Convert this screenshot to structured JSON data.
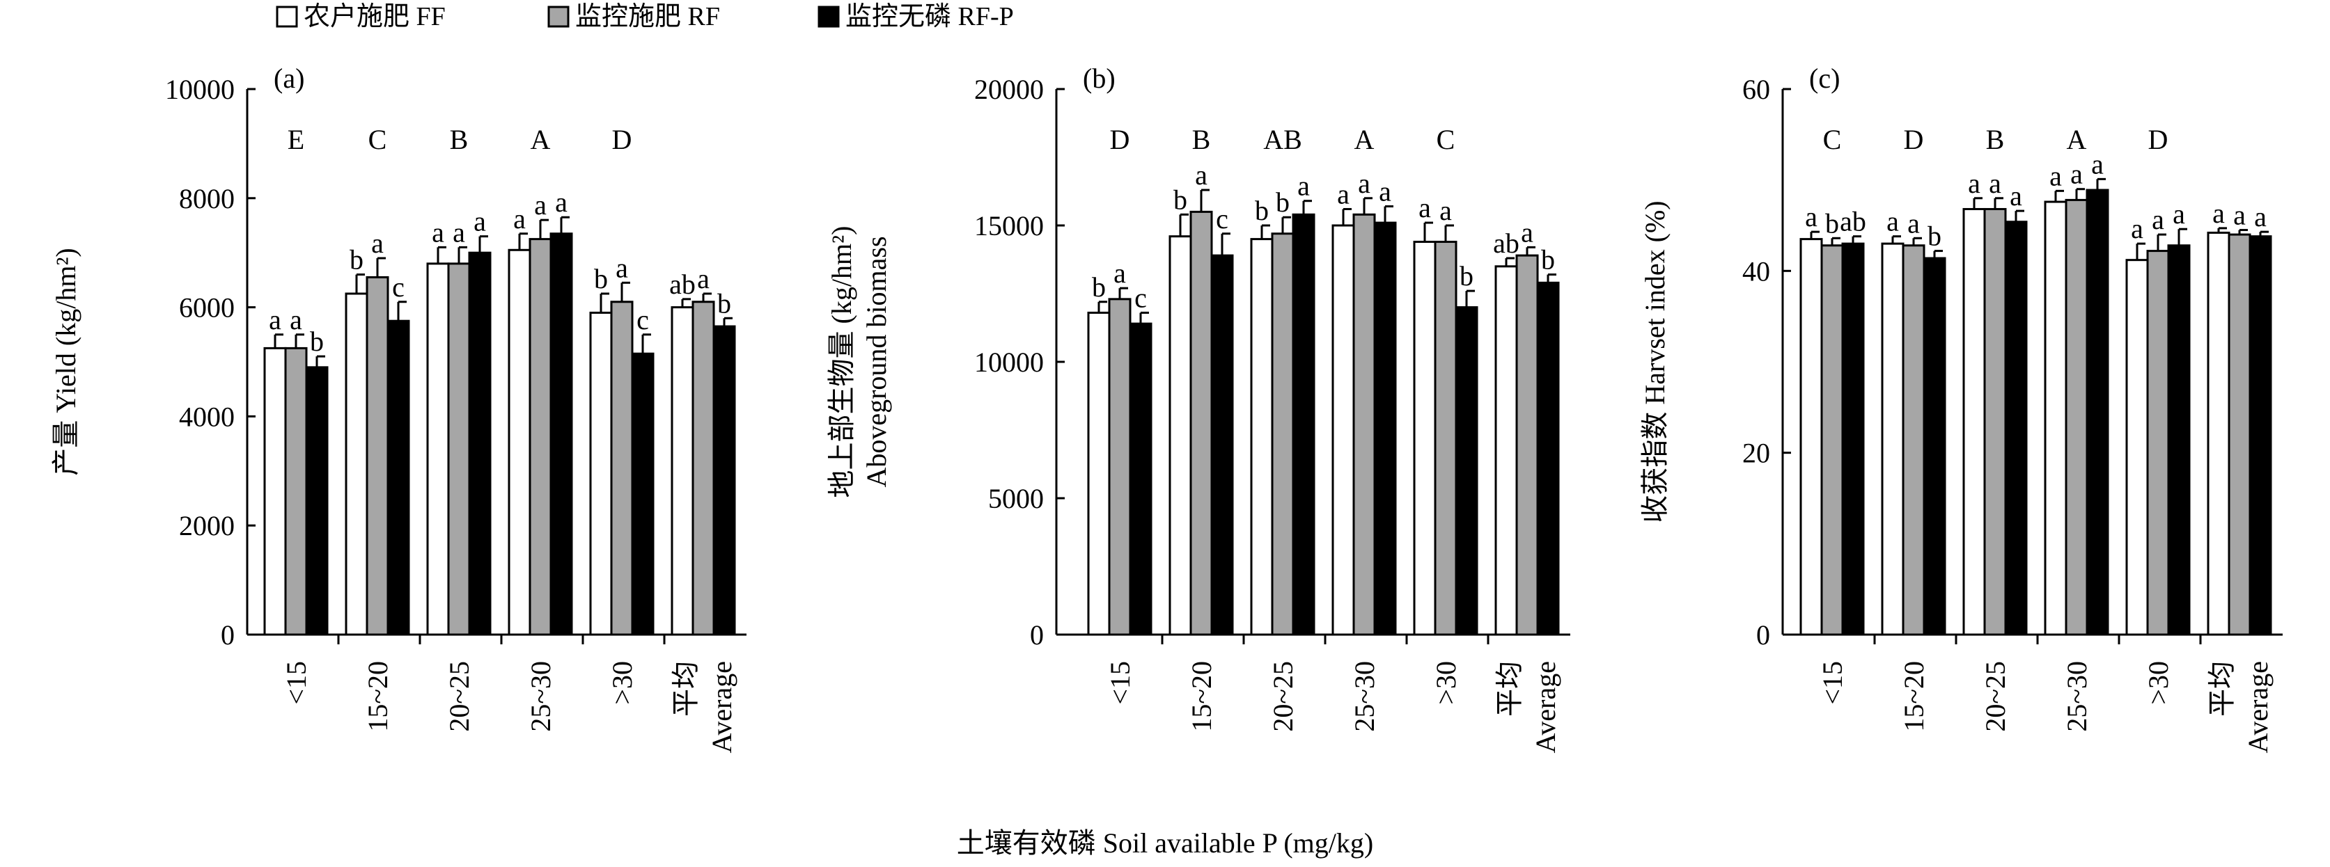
{
  "figure": {
    "legend": [
      {
        "label": "农户施肥 FF",
        "color": "#ffffff"
      },
      {
        "label": "监控施肥 RF",
        "color": "#a6a6a6"
      },
      {
        "label": "监控无磷 RF-P",
        "color": "#000000"
      }
    ],
    "shared_xlabel": "土壤有效磷 Soil available P (mg/kg)"
  },
  "chart_data": [
    {
      "type": "bar",
      "panel": "(a)",
      "ylabel": "产量 Yield (kg/hm²)",
      "ylim": [
        0,
        10000
      ],
      "yticks": [
        "0",
        "2000",
        "4000",
        "6000",
        "8000",
        "10000"
      ],
      "categories": [
        "<15",
        "15~20",
        "20~25",
        "25~30",
        ">30",
        "平均 Average"
      ],
      "group_letters": [
        "E",
        "C",
        "B",
        "A",
        "D",
        ""
      ],
      "series": [
        {
          "name": "农户施肥 FF",
          "color": "#ffffff",
          "values": [
            5250,
            6250,
            6800,
            7050,
            5900,
            6000
          ],
          "errors": [
            250,
            350,
            300,
            300,
            350,
            150
          ],
          "labels": [
            "a",
            "b",
            "a",
            "a",
            "b",
            "ab"
          ]
        },
        {
          "name": "监控施肥 RF",
          "color": "#a6a6a6",
          "values": [
            5250,
            6550,
            6800,
            7250,
            6100,
            6100
          ],
          "errors": [
            250,
            350,
            300,
            350,
            350,
            150
          ],
          "labels": [
            "a",
            "a",
            "a",
            "a",
            "a",
            "a"
          ]
        },
        {
          "name": "监控无磷 RF-P",
          "color": "#000000",
          "values": [
            4900,
            5750,
            7000,
            7350,
            5150,
            5650
          ],
          "errors": [
            200,
            350,
            300,
            300,
            350,
            150
          ],
          "labels": [
            "b",
            "c",
            "a",
            "a",
            "c",
            "b"
          ]
        }
      ]
    },
    {
      "type": "bar",
      "panel": "(b)",
      "ylabel": "地上部生物量 (kg/hm²) Aboveground biomass",
      "ylim": [
        0,
        20000
      ],
      "yticks": [
        "0",
        "5000",
        "10000",
        "15000",
        "20000"
      ],
      "categories": [
        "<15",
        "15~20",
        "20~25",
        "25~30",
        ">30",
        "平均 Average"
      ],
      "group_letters": [
        "D",
        "B",
        "AB",
        "A",
        "C",
        ""
      ],
      "series": [
        {
          "name": "农户施肥 FF",
          "color": "#ffffff",
          "values": [
            11800,
            14600,
            14500,
            15000,
            14400,
            13500
          ],
          "errors": [
            400,
            800,
            500,
            600,
            700,
            300
          ],
          "labels": [
            "b",
            "b",
            "b",
            "a",
            "a",
            "ab"
          ]
        },
        {
          "name": "监控施肥 RF",
          "color": "#a6a6a6",
          "values": [
            12300,
            15500,
            14700,
            15400,
            14400,
            13900
          ],
          "errors": [
            400,
            800,
            600,
            600,
            600,
            300
          ],
          "labels": [
            "a",
            "a",
            "b",
            "a",
            "a",
            "a"
          ]
        },
        {
          "name": "监控无磷 RF-P",
          "color": "#000000",
          "values": [
            11400,
            13900,
            15400,
            15100,
            12000,
            12900
          ],
          "errors": [
            400,
            800,
            500,
            600,
            600,
            300
          ],
          "labels": [
            "c",
            "c",
            "a",
            "a",
            "b",
            "b"
          ]
        }
      ]
    },
    {
      "type": "bar",
      "panel": "(c)",
      "ylabel": "收获指数 Harvset index (%)",
      "ylim": [
        0,
        60
      ],
      "yticks": [
        "0",
        "20",
        "40",
        "60"
      ],
      "categories": [
        "<15",
        "15~20",
        "20~25",
        "25~30",
        ">30",
        "平均 Average"
      ],
      "group_letters": [
        "C",
        "D",
        "B",
        "A",
        "D",
        ""
      ],
      "series": [
        {
          "name": "农户施肥 FF",
          "color": "#ffffff",
          "values": [
            43.5,
            43.0,
            46.8,
            47.6,
            41.2,
            44.2
          ],
          "errors": [
            0.8,
            0.8,
            1.2,
            1.2,
            1.8,
            0.5
          ],
          "labels": [
            "a",
            "a",
            "a",
            "a",
            "a",
            "a"
          ]
        },
        {
          "name": "监控施肥 RF",
          "color": "#a6a6a6",
          "values": [
            42.8,
            42.8,
            46.8,
            47.8,
            42.2,
            44.0
          ],
          "errors": [
            0.8,
            0.8,
            1.2,
            1.2,
            1.8,
            0.5
          ],
          "labels": [
            "b",
            "a",
            "a",
            "a",
            "a",
            "a"
          ]
        },
        {
          "name": "监控无磷 RF-P",
          "color": "#000000",
          "values": [
            43.0,
            41.4,
            45.4,
            48.9,
            42.8,
            43.8
          ],
          "errors": [
            0.8,
            0.8,
            1.2,
            1.2,
            1.8,
            0.5
          ],
          "labels": [
            "ab",
            "b",
            "a",
            "a",
            "a",
            "a"
          ]
        }
      ]
    }
  ]
}
